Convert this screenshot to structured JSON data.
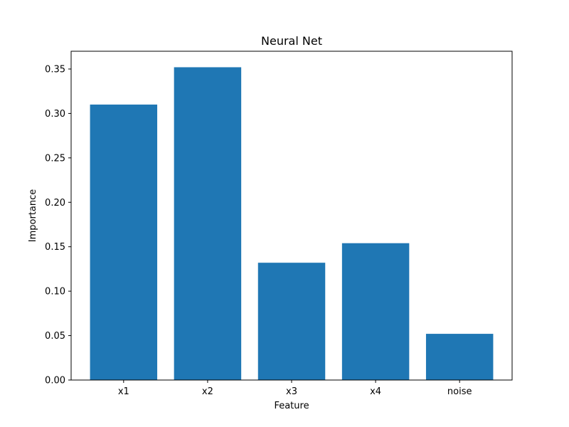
{
  "chart_data": {
    "type": "bar",
    "title": "Neural Net",
    "xlabel": "Feature",
    "ylabel": "Importance",
    "categories": [
      "x1",
      "x2",
      "x3",
      "x4",
      "noise"
    ],
    "values": [
      0.31,
      0.352,
      0.132,
      0.154,
      0.052
    ],
    "ylim": [
      0,
      0.37
    ],
    "yticks": [
      0.0,
      0.05,
      0.1,
      0.15,
      0.2,
      0.25,
      0.3,
      0.35
    ],
    "ytick_labels": [
      "0.00",
      "0.05",
      "0.10",
      "0.15",
      "0.20",
      "0.25",
      "0.30",
      "0.35"
    ],
    "bar_color": "#1f77b4",
    "grid": false,
    "legend": "none"
  }
}
